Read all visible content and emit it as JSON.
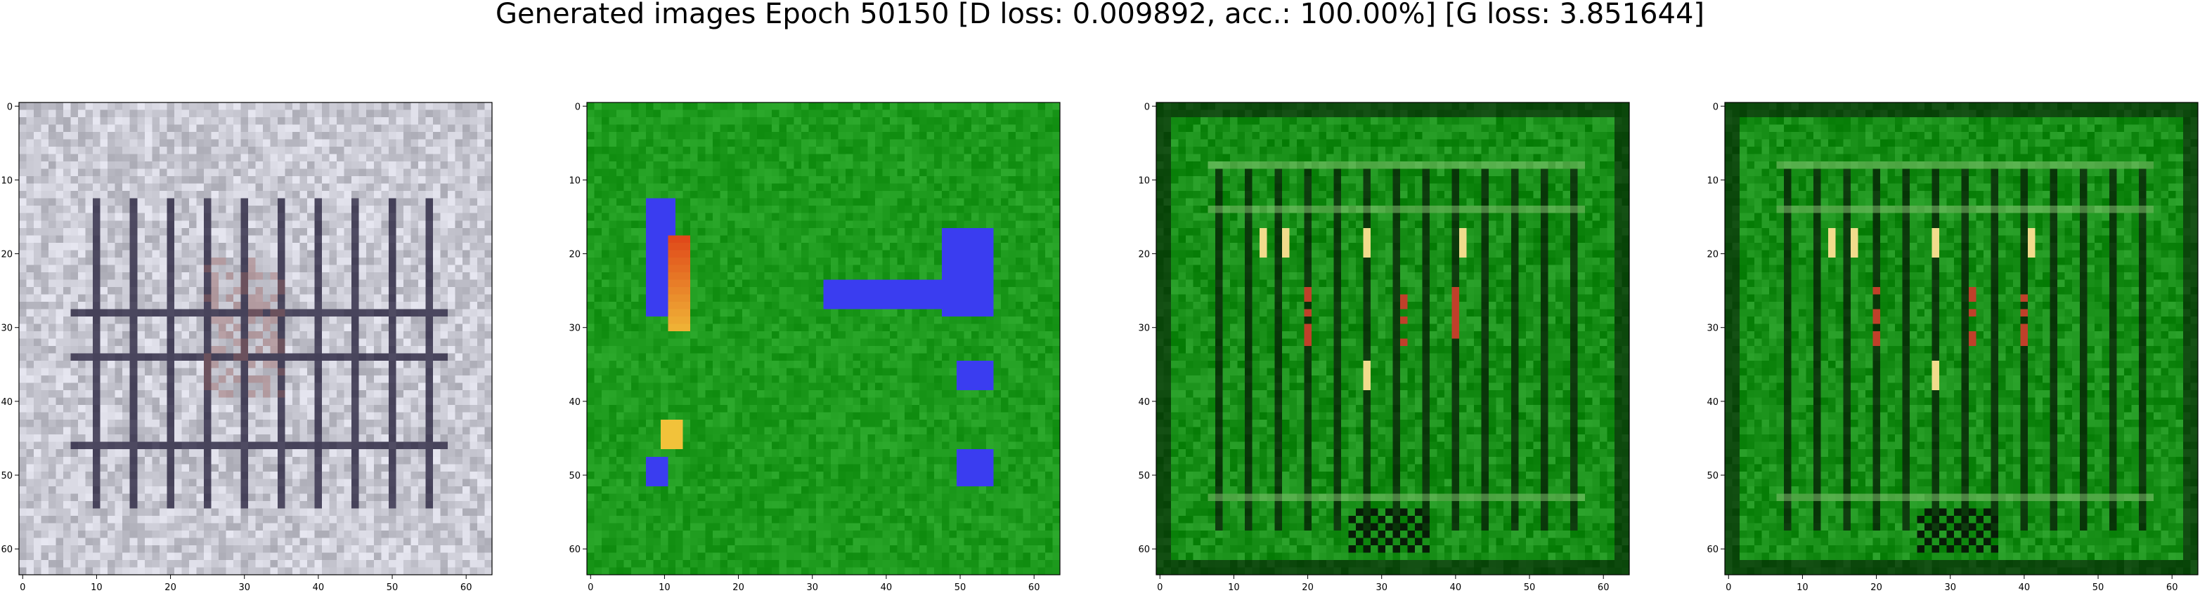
{
  "figure": {
    "title": "Generated images Epoch 50150 [D loss: 0.009892, acc.: 100.00%] [G loss: 3.851644]"
  },
  "chart_data": [
    {
      "type": "heatmap",
      "panel": 1,
      "title": "",
      "xlabel": "",
      "ylabel": "",
      "xlim": [
        0,
        64
      ],
      "ylim": [
        64,
        0
      ],
      "xticks": [
        "0",
        "10",
        "20",
        "30",
        "40",
        "50",
        "60"
      ],
      "yticks": [
        "0",
        "10",
        "20",
        "30",
        "40",
        "50",
        "60"
      ],
      "grid": false,
      "palette": {
        "base": "#c9c9d3",
        "line": "#2a2540",
        "accent": "#8a5a5a"
      }
    },
    {
      "type": "heatmap",
      "panel": 2,
      "title": "",
      "xlabel": "",
      "ylabel": "",
      "xlim": [
        0,
        64
      ],
      "ylim": [
        64,
        0
      ],
      "xticks": [
        "0",
        "10",
        "20",
        "30",
        "40",
        "50",
        "60"
      ],
      "yticks": [
        "0",
        "10",
        "20",
        "30",
        "40",
        "50",
        "60"
      ],
      "grid": false,
      "palette": {
        "base": "#1d9a1d",
        "blue": "#3a3df0",
        "red": "#e04a1a",
        "yellow": "#f2c23a"
      }
    },
    {
      "type": "heatmap",
      "panel": 3,
      "title": "",
      "xlabel": "",
      "ylabel": "",
      "xlim": [
        0,
        64
      ],
      "ylim": [
        64,
        0
      ],
      "xticks": [
        "0",
        "10",
        "20",
        "30",
        "40",
        "50",
        "60"
      ],
      "yticks": [
        "0",
        "10",
        "20",
        "30",
        "40",
        "50",
        "60"
      ],
      "grid": false,
      "palette": {
        "base": "#188f18",
        "dark": "#071c07",
        "red": "#c0402a",
        "yellow": "#f1dc8c"
      }
    },
    {
      "type": "heatmap",
      "panel": 4,
      "title": "",
      "xlabel": "",
      "ylabel": "",
      "xlim": [
        0,
        64
      ],
      "ylim": [
        64,
        0
      ],
      "xticks": [
        "0",
        "10",
        "20",
        "30",
        "40",
        "50",
        "60"
      ],
      "yticks": [
        "0",
        "10",
        "20",
        "30",
        "40",
        "50",
        "60"
      ],
      "grid": false,
      "palette": {
        "base": "#188f18",
        "dark": "#071c07",
        "red": "#c0402a",
        "yellow": "#f1dc8c"
      }
    }
  ]
}
